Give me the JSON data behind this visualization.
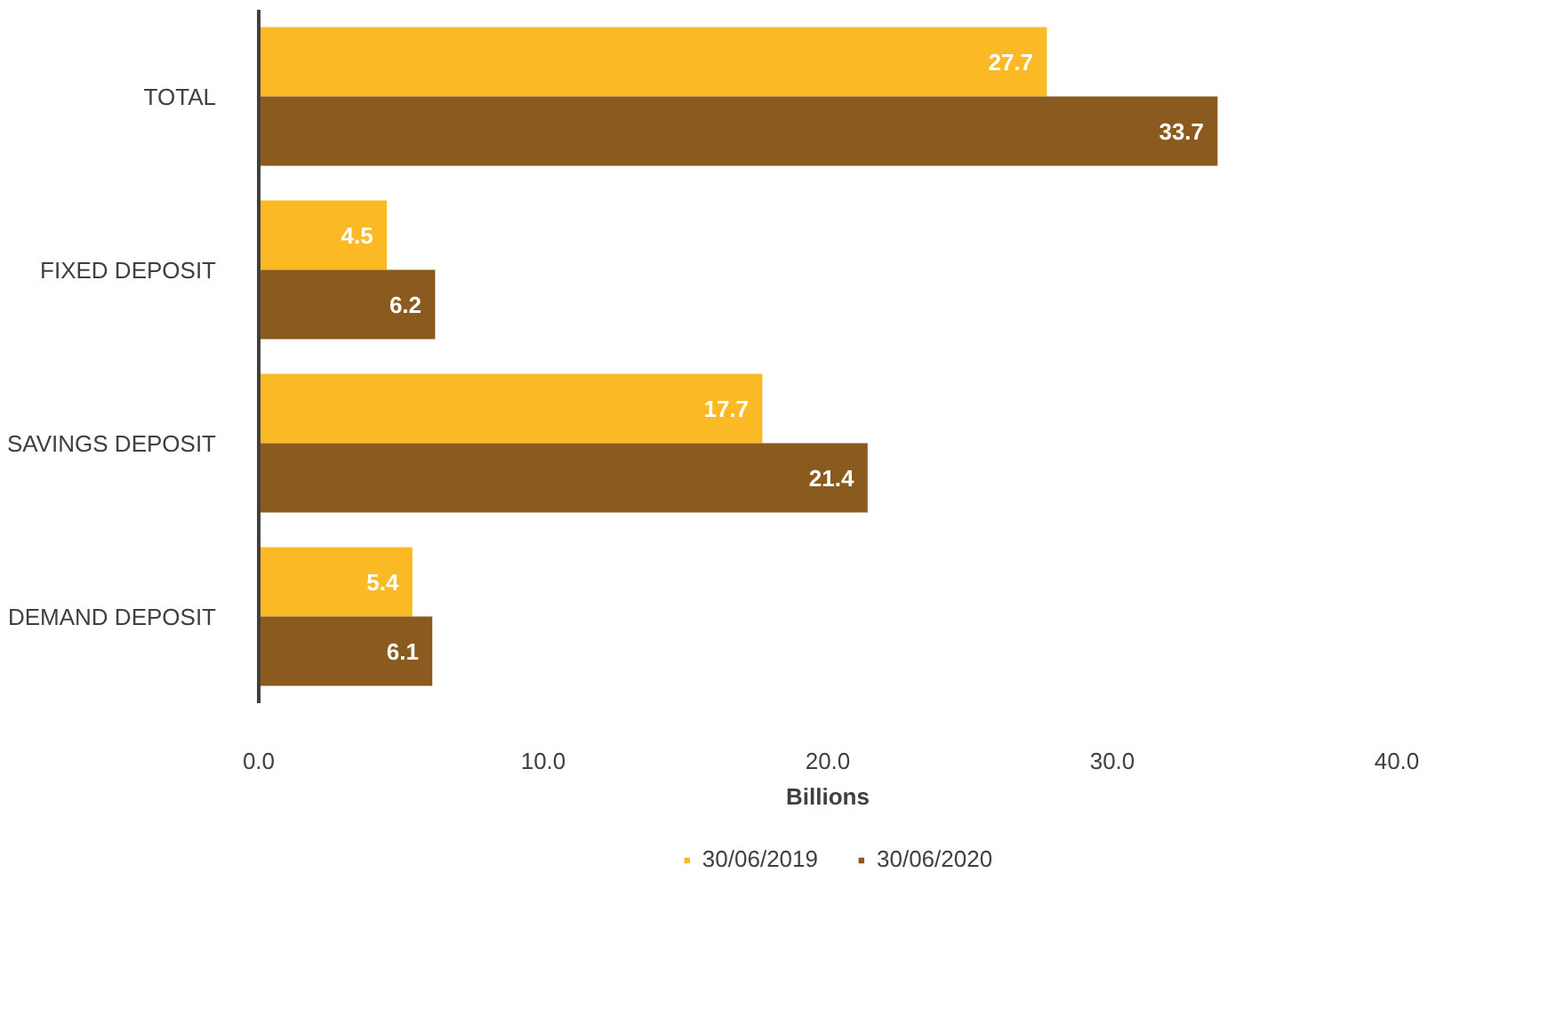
{
  "chart_data": {
    "type": "bar",
    "orientation": "horizontal",
    "categories": [
      "TOTAL",
      "FIXED DEPOSIT",
      "SAVINGS DEPOSIT",
      "DEMAND DEPOSIT"
    ],
    "series": [
      {
        "name": "30/06/2019",
        "color": "#fbb925",
        "values": [
          27.7,
          4.5,
          17.7,
          5.4
        ]
      },
      {
        "name": "30/06/2020",
        "color": "#8b5a1e",
        "values": [
          33.7,
          6.2,
          21.4,
          6.1
        ]
      }
    ],
    "xlabel": "Billions",
    "xlim": [
      0,
      40
    ],
    "xticks": [
      {
        "value": 0,
        "label": "0.0"
      },
      {
        "value": 10,
        "label": "10.0"
      },
      {
        "value": 20,
        "label": "20.0"
      },
      {
        "value": 30,
        "label": "30.0"
      },
      {
        "value": 40,
        "label": "40.0"
      }
    ],
    "data_labels": true,
    "legend": "bottom",
    "grid": false
  }
}
